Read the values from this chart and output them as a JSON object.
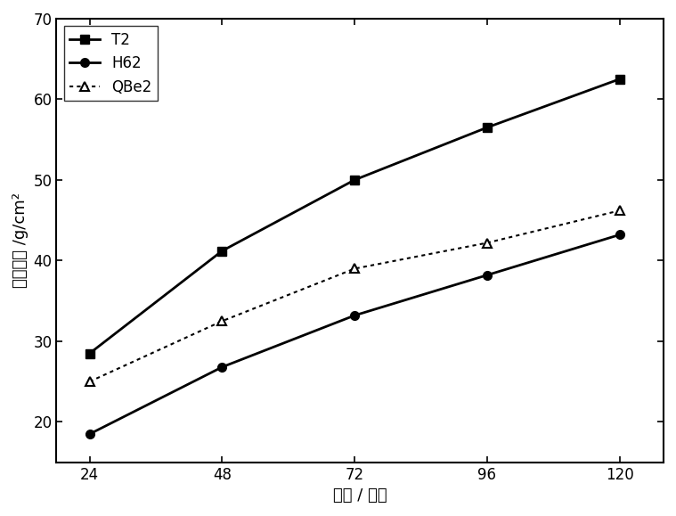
{
  "x": [
    24,
    48,
    72,
    96,
    120
  ],
  "T2": [
    28.5,
    41.2,
    50.0,
    56.5,
    62.5
  ],
  "H62": [
    18.5,
    26.8,
    33.2,
    38.2,
    43.2
  ],
  "QBe2": [
    25.0,
    32.5,
    39.0,
    42.2,
    46.2
  ],
  "xlim": [
    18,
    128
  ],
  "ylim": [
    15,
    70
  ],
  "xticks": [
    24,
    48,
    72,
    96,
    120
  ],
  "yticks": [
    20,
    30,
    40,
    50,
    60,
    70
  ],
  "xlabel": "时间 / 小时",
  "ylabel": "腔饰失重 /g/cm²",
  "legend_T2": "T2",
  "legend_H62": "H62",
  "legend_QBe2": "QBe2",
  "line_color": "#000000",
  "bg_color": "#ffffff",
  "fontsize_label": 13,
  "fontsize_tick": 12,
  "fontsize_legend": 12
}
